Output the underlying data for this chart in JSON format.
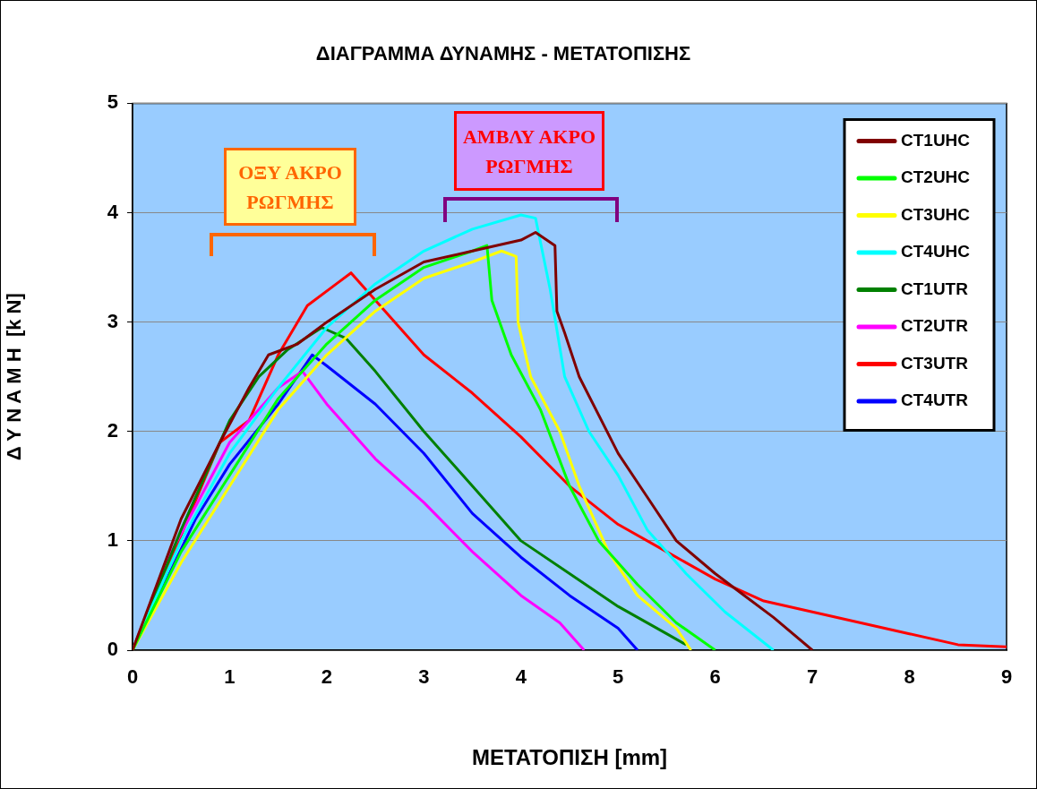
{
  "chart_data": {
    "type": "line",
    "title": "ΔΙΑΓΡΑΜΜΑ ΔΥΝΑΜΗΣ - ΜΕΤΑΤΟΠΙΣΗΣ",
    "xlabel": "ΜΕΤΑΤΟΠΙΣΗ [mm]",
    "ylabel": "Δ Υ Ν Α Μ Η  [k N]",
    "xlim": [
      0,
      9
    ],
    "xticks": [
      0,
      1,
      2,
      3,
      4,
      5,
      6,
      7,
      8,
      9
    ],
    "ylim": [
      0,
      5
    ],
    "yticks": [
      0,
      1,
      2,
      3,
      4,
      5
    ],
    "grid": "y",
    "legend": "top right",
    "marker": "none",
    "line_style": "solid",
    "annotations": [
      "ΟΞΥ ΑΚΡΟ ΡΩΓΜΗΣ",
      "ΑΜΒΛΥ ΑΚΡΟ ΡΩΓΜΗΣ"
    ],
    "series": [
      {
        "name": "CT1UHC",
        "color": "#800000",
        "x": [
          0,
          0.5,
          0.9,
          1.2,
          1.4,
          1.7,
          2,
          2.5,
          3,
          3.5,
          4,
          4.15,
          4.35,
          4.37,
          4.45,
          4.6,
          5,
          5.3,
          5.6,
          6,
          6.3,
          6.6,
          7
        ],
        "values": [
          0,
          1.2,
          1.9,
          2.4,
          2.7,
          2.8,
          3,
          3.3,
          3.55,
          3.65,
          3.75,
          3.82,
          3.7,
          3.1,
          2.9,
          2.5,
          1.8,
          1.4,
          1,
          0.7,
          0.5,
          0.3,
          0
        ]
      },
      {
        "name": "CT2UHC",
        "color": "#00ff00",
        "x": [
          0,
          0.5,
          1,
          1.5,
          2,
          2.5,
          3,
          3.5,
          3.65,
          3.7,
          3.9,
          4.2,
          4.5,
          4.8,
          5.2,
          5.6,
          6
        ],
        "values": [
          0,
          0.9,
          1.6,
          2.3,
          2.8,
          3.2,
          3.5,
          3.65,
          3.7,
          3.2,
          2.7,
          2.2,
          1.5,
          1,
          0.6,
          0.25,
          0
        ]
      },
      {
        "name": "CT3UHC",
        "color": "#ffff00",
        "x": [
          0,
          0.5,
          1,
          1.5,
          2,
          2.5,
          3,
          3.5,
          3.8,
          3.95,
          3.97,
          4.1,
          4.4,
          4.6,
          4.9,
          5.2,
          5.6,
          5.75
        ],
        "values": [
          0,
          0.8,
          1.5,
          2.2,
          2.7,
          3.1,
          3.4,
          3.55,
          3.65,
          3.6,
          3,
          2.5,
          2,
          1.5,
          0.9,
          0.5,
          0.2,
          0
        ]
      },
      {
        "name": "CT4UHC",
        "color": "#00ffff",
        "x": [
          0,
          0.5,
          1,
          1.5,
          2,
          2.5,
          3,
          3.5,
          4,
          4.15,
          4.3,
          4.45,
          4.7,
          5,
          5.3,
          5.7,
          6.1,
          6.6
        ],
        "values": [
          0,
          1,
          1.8,
          2.4,
          2.95,
          3.35,
          3.65,
          3.85,
          3.98,
          3.95,
          3.3,
          2.5,
          2,
          1.6,
          1.1,
          0.7,
          0.35,
          0
        ]
      },
      {
        "name": "CT1UTR",
        "color": "#008000",
        "x": [
          0,
          0.5,
          1,
          1.3,
          1.6,
          1.95,
          2.2,
          2.5,
          3,
          3.5,
          4,
          4.5,
          5,
          5.5,
          5.7
        ],
        "values": [
          0,
          1.1,
          2.1,
          2.5,
          2.75,
          2.95,
          2.85,
          2.55,
          2,
          1.5,
          1,
          0.7,
          0.4,
          0.15,
          0.05
        ]
      },
      {
        "name": "CT2UTR",
        "color": "#ff00ff",
        "x": [
          0,
          0.4,
          1,
          1.5,
          1.75,
          2,
          2.5,
          3,
          3.5,
          4,
          4.4,
          4.65
        ],
        "values": [
          0,
          0.9,
          1.9,
          2.4,
          2.55,
          2.25,
          1.75,
          1.35,
          0.9,
          0.5,
          0.25,
          0
        ]
      },
      {
        "name": "CT3UTR",
        "color": "#ff0000",
        "x": [
          0,
          0.5,
          0.9,
          1.2,
          1.5,
          1.8,
          2.1,
          2.25,
          2.5,
          3,
          3.5,
          4,
          4.5,
          5,
          5.5,
          6,
          6.5,
          7,
          7.5,
          8,
          8.5,
          9
        ],
        "values": [
          0,
          1.05,
          1.9,
          2.1,
          2.7,
          3.15,
          3.35,
          3.45,
          3.2,
          2.7,
          2.35,
          1.95,
          1.5,
          1.15,
          0.9,
          0.65,
          0.45,
          0.35,
          0.25,
          0.15,
          0.05,
          0.03
        ]
      },
      {
        "name": "CT4UTR",
        "color": "#0000ff",
        "x": [
          0,
          0.65,
          1,
          1.5,
          1.85,
          2,
          2.5,
          3,
          3.5,
          4,
          4.5,
          5,
          5.2
        ],
        "values": [
          0,
          1.2,
          1.7,
          2.25,
          2.7,
          2.6,
          2.25,
          1.8,
          1.25,
          0.85,
          0.5,
          0.2,
          0
        ]
      }
    ]
  }
}
